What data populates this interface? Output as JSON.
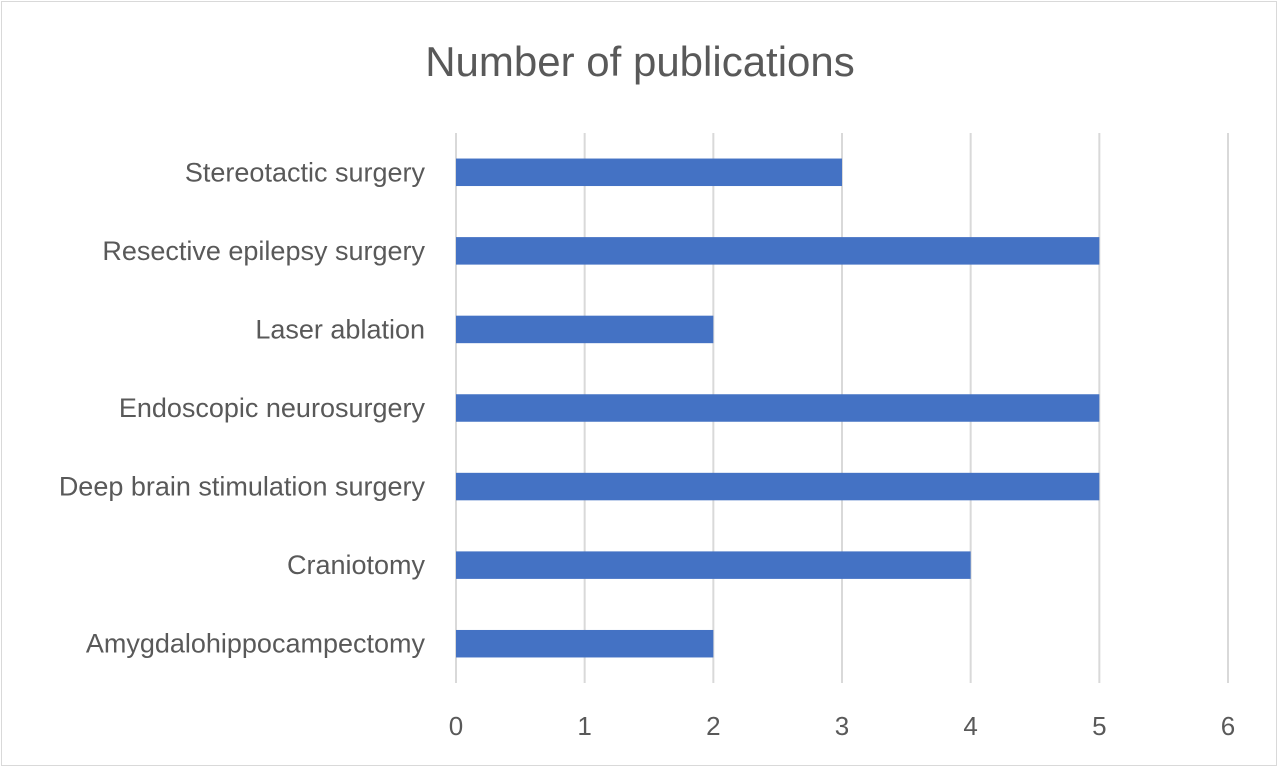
{
  "chart_data": {
    "type": "bar",
    "orientation": "horizontal",
    "title": "Number of publications",
    "xlabel": "",
    "ylabel": "",
    "categories": [
      "Stereotactic surgery",
      "Resective epilepsy surgery",
      "Laser ablation",
      "Endoscopic neurosurgery",
      "Deep brain stimulation surgery",
      "Craniotomy",
      "Amygdalohippocampectomy"
    ],
    "values": [
      3,
      5,
      2,
      5,
      5,
      4,
      2
    ],
    "xlim": [
      0,
      6
    ],
    "ticks": [
      "0",
      "1",
      "2",
      "3",
      "4",
      "5",
      "6"
    ],
    "grid": true,
    "legend": "none",
    "bar_color": "#4472c4"
  }
}
